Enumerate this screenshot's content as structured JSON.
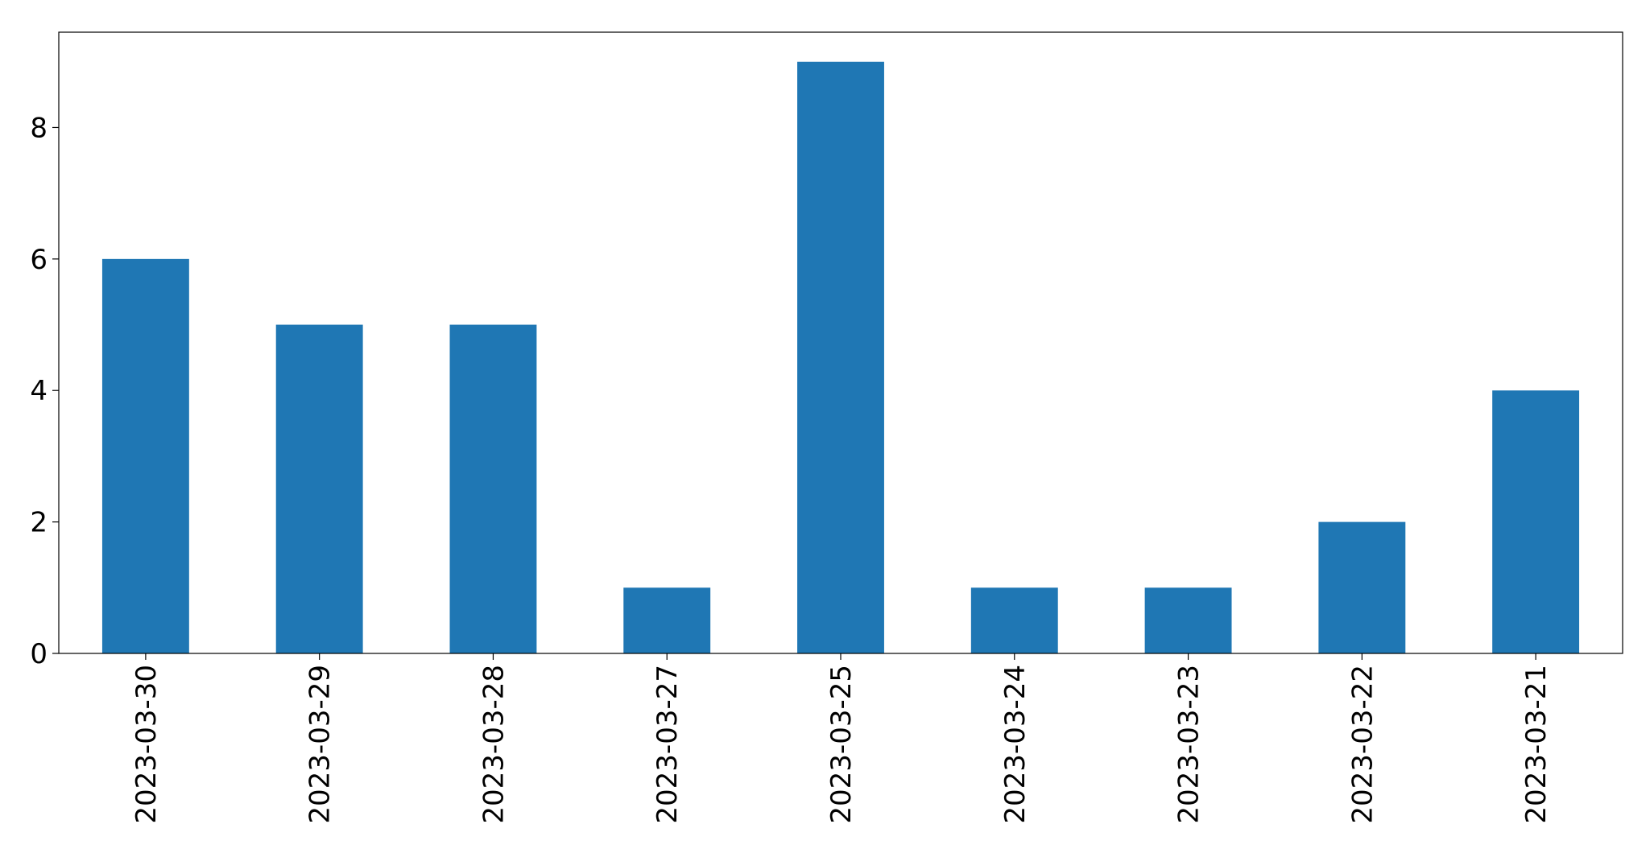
{
  "chart_data": {
    "type": "bar",
    "title": "",
    "xlabel": "",
    "ylabel": "",
    "categories": [
      "2023-03-30",
      "2023-03-29",
      "2023-03-28",
      "2023-03-27",
      "2023-03-25",
      "2023-03-24",
      "2023-03-23",
      "2023-03-22",
      "2023-03-21"
    ],
    "values": [
      6,
      5,
      5,
      1,
      9,
      1,
      1,
      2,
      4
    ],
    "ylim": [
      0,
      9.45
    ],
    "yticks": [
      0,
      2,
      4,
      6,
      8
    ],
    "grid": false,
    "legend": "none",
    "colors": {
      "bar": "#1f77b4",
      "axis": "#000000",
      "background": "#ffffff"
    }
  }
}
